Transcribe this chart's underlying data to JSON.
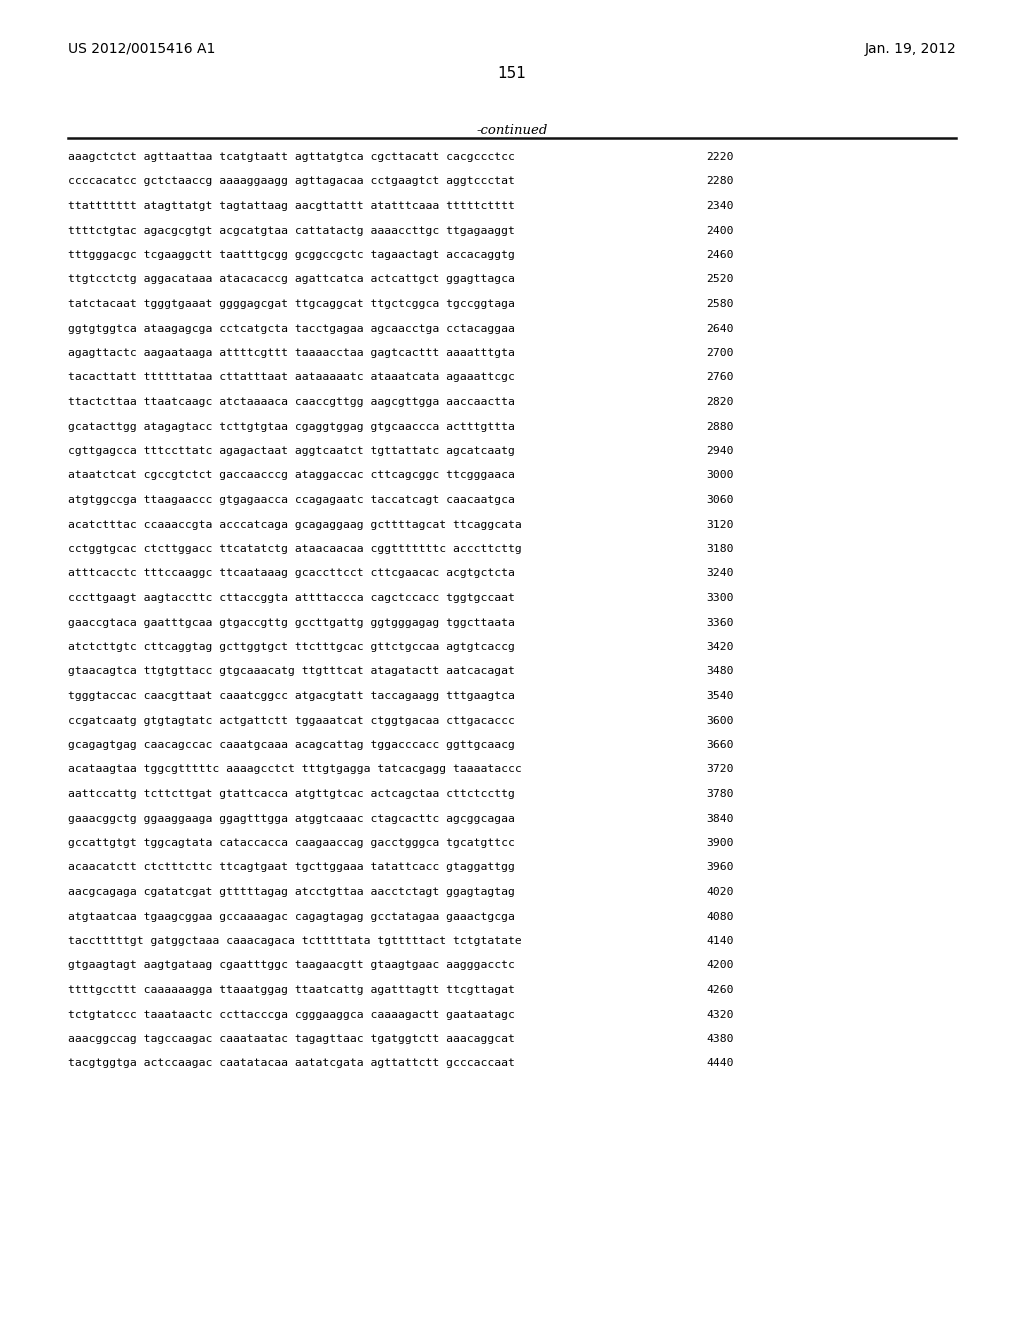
{
  "header_left": "US 2012/0015416 A1",
  "header_right": "Jan. 19, 2012",
  "page_number": "151",
  "continued_label": "-continued",
  "background_color": "#ffffff",
  "text_color": "#000000",
  "sequence_lines": [
    {
      "seq": "aaagctctct agttaattaa tcatgtaatt agttatgtca cgcttacatt cacgccctcc",
      "num": "2220"
    },
    {
      "seq": "ccccacatcc gctctaaccg aaaaggaagg agttagacaa cctgaagtct aggtccctat",
      "num": "2280"
    },
    {
      "seq": "ttattttttt atagttatgt tagtattaag aacgttattt atatttcaaa tttttctttt",
      "num": "2340"
    },
    {
      "seq": "ttttctgtac agacgcgtgt acgcatgtaa cattatactg aaaaccttgc ttgagaaggt",
      "num": "2400"
    },
    {
      "seq": "tttgggacgc tcgaaggctt taatttgcgg gcggccgctc tagaactagt accacaggtg",
      "num": "2460"
    },
    {
      "seq": "ttgtcctctg aggacataaa atacacaccg agattcatca actcattgct ggagttagca",
      "num": "2520"
    },
    {
      "seq": "tatctacaat tgggtgaaat ggggagcgat ttgcaggcat ttgctcggca tgccggtaga",
      "num": "2580"
    },
    {
      "seq": "ggtgtggtca ataagagcga cctcatgcta tacctgagaa agcaacctga cctacaggaa",
      "num": "2640"
    },
    {
      "seq": "agagttactc aagaataaga attttcgttt taaaacctaa gagtcacttt aaaatttgta",
      "num": "2700"
    },
    {
      "seq": "tacacttatt ttttttataa cttatttaat aataaaaatc ataaatcata agaaattcgc",
      "num": "2760"
    },
    {
      "seq": "ttactcttaa ttaatcaagc atctaaaaca caaccgttgg aagcgttgga aaccaactta",
      "num": "2820"
    },
    {
      "seq": "gcatacttgg atagagtacc tcttgtgtaa cgaggtggag gtgcaaccca actttgttta",
      "num": "2880"
    },
    {
      "seq": "cgttgagcca tttccttatc agagactaat aggtcaatct tgttattatc agcatcaatg",
      "num": "2940"
    },
    {
      "seq": "ataatctcat cgccgtctct gaccaacccg ataggaccac cttcagcggc ttcgggaaca",
      "num": "3000"
    },
    {
      "seq": "atgtggccga ttaagaaccc gtgagaacca ccagagaatc taccatcagt caacaatgca",
      "num": "3060"
    },
    {
      "seq": "acatctttac ccaaaccgta acccatcaga gcagaggaag gcttttagcat ttcaggcata",
      "num": "3120"
    },
    {
      "seq": "cctggtgcac ctcttggacc ttcatatctg ataacaacaa cggtttttttc acccttcttg",
      "num": "3180"
    },
    {
      "seq": "atttcacctc tttccaaggc ttcaataaag gcaccttcct cttcgaacac acgtgctcta",
      "num": "3240"
    },
    {
      "seq": "cccttgaagt aagtaccttc cttaccggta attttaccca cagctccacc tggtgccaat",
      "num": "3300"
    },
    {
      "seq": "gaaccgtaca gaatttgcaa gtgaccgttg gccttgattg ggtgggagag tggcttaata",
      "num": "3360"
    },
    {
      "seq": "atctcttgtc cttcaggtag gcttggtgct ttctttgcac gttctgccaa agtgtcaccg",
      "num": "3420"
    },
    {
      "seq": "gtaacagtca ttgtgttacc gtgcaaacatg ttgtttcat atagatactt aatcacagat",
      "num": "3480"
    },
    {
      "seq": "tgggtaccac caacgttaat caaatcggcc atgacgtatt taccagaagg tttgaagtca",
      "num": "3540"
    },
    {
      "seq": "ccgatcaatg gtgtagtatc actgattctt tggaaatcat ctggtgacaa cttgacaccc",
      "num": "3600"
    },
    {
      "seq": "gcagagtgag caacagccac caaatgcaaa acagcattag tggacccacc ggttgcaacg",
      "num": "3660"
    },
    {
      "seq": "acataagtaa tggcgtttttc aaaagcctct tttgtgagga tatcacgagg taaaataccc",
      "num": "3720"
    },
    {
      "seq": "aattccattg tcttcttgat gtattcacca atgttgtcac actcagctaa cttctccttg",
      "num": "3780"
    },
    {
      "seq": "gaaacggctg ggaaggaaga ggagtttgga atggtcaaac ctagcacttc agcggcagaa",
      "num": "3840"
    },
    {
      "seq": "gccattgtgt tggcagtata cataccacca caagaaccag gacctgggca tgcatgttcc",
      "num": "3900"
    },
    {
      "seq": "acaacatctt ctctttcttc ttcagtgaat tgcttggaaa tatattcacc gtaggattgg",
      "num": "3960"
    },
    {
      "seq": "aacgcagaga cgatatcgat gtttttagag atcctgttaa aacctctagt ggagtagtag",
      "num": "4020"
    },
    {
      "seq": "atgtaatcaa tgaagcggaa gccaaaagac cagagtagag gcctatagaa gaaactgcga",
      "num": "4080"
    },
    {
      "seq": "tacctttttgt gatggctaaa caaacagaca tctttttata tgtttttact tctgtatate",
      "num": "4140"
    },
    {
      "seq": "gtgaagtagt aagtgataag cgaatttggc taagaacgtt gtaagtgaac aagggacctc",
      "num": "4200"
    },
    {
      "seq": "ttttgccttt caaaaaagga ttaaatggag ttaatcattg agatttagtt ttcgttagat",
      "num": "4260"
    },
    {
      "seq": "tctgtatccc taaataactc ccttacccga cgggaaggca caaaagactt gaataatagc",
      "num": "4320"
    },
    {
      "seq": "aaacggccag tagccaagac caaataatac tagagttaac tgatggtctt aaacaggcat",
      "num": "4380"
    },
    {
      "seq": "tacgtggtga actccaagac caatatacaa aatatcgata agttattctt gcccaccaat",
      "num": "4440"
    }
  ]
}
